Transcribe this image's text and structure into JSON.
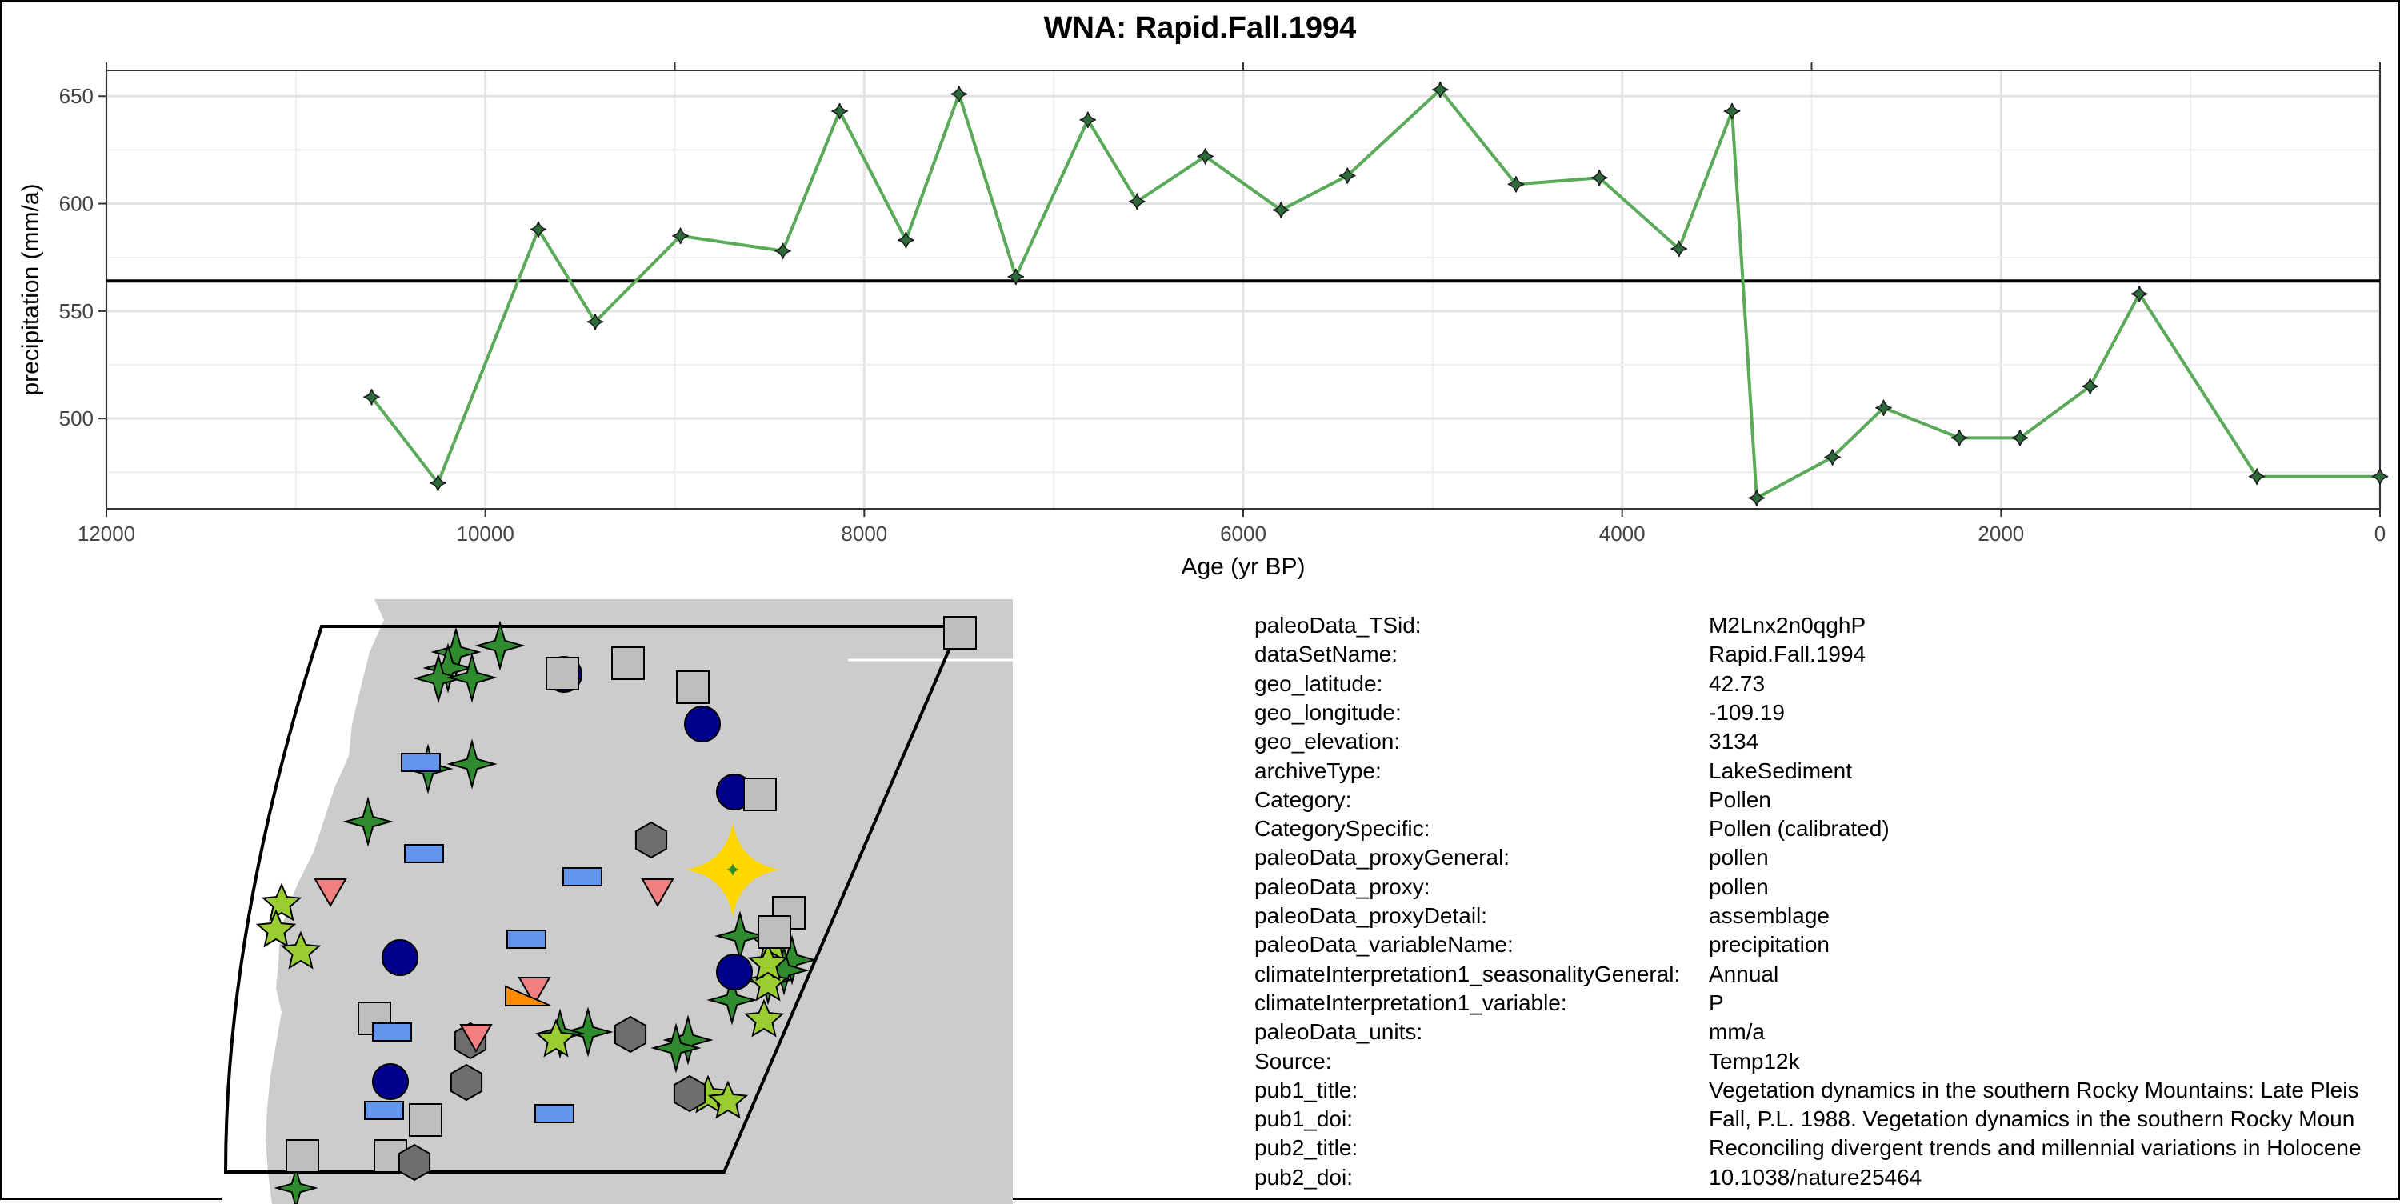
{
  "title": "WNA: Rapid.Fall.1994",
  "chart_data": {
    "type": "line",
    "title": "WNA: Rapid.Fall.1994",
    "xlabel": "Age (yr BP)",
    "ylabel": "precipitation (mm/a)",
    "xlim": [
      12000,
      0
    ],
    "ylim": [
      458,
      662
    ],
    "x_ticks": [
      12000,
      10000,
      8000,
      6000,
      4000,
      2000,
      0
    ],
    "y_ticks": [
      500,
      550,
      600,
      650
    ],
    "reference_line": 564,
    "grid": true,
    "series": [
      {
        "color": "#5aaa5a",
        "marker_color": "#2e6b3a",
        "x": [
          10600,
          10250,
          9720,
          9420,
          8970,
          8430,
          8130,
          7780,
          7500,
          7200,
          6820,
          6560,
          6200,
          5800,
          5450,
          4960,
          4560,
          4120,
          3700,
          3420,
          3290,
          2890,
          2620,
          2220,
          1900,
          1530,
          1270,
          650,
          0
        ],
        "y": [
          510,
          470,
          588,
          545,
          585,
          578,
          643,
          583,
          651,
          566,
          639,
          601,
          622,
          597,
          613,
          653,
          609,
          612,
          579,
          643,
          463,
          482,
          505,
          491,
          491,
          515,
          558,
          473,
          473
        ]
      }
    ]
  },
  "map": {
    "land_color": "#cccccc",
    "ocean_color": "#ffffff",
    "highlight_color": "#ffd700",
    "site_colors": {
      "dark_green": "#2e8b2e",
      "light_green": "#9acd32",
      "navy": "#00008b",
      "gray_square": "#bebebe",
      "dark_hex": "#6e6e6e",
      "blue_rect": "#6495ed",
      "pink_triangle": "#f08080",
      "orange": "#ff8c00"
    }
  },
  "metadata": [
    {
      "key": "paleoData_TSid:",
      "value": "M2Lnx2n0qghP"
    },
    {
      "key": "dataSetName:",
      "value": "Rapid.Fall.1994"
    },
    {
      "key": "geo_latitude:",
      "value": "42.73"
    },
    {
      "key": "geo_longitude:",
      "value": "-109.19"
    },
    {
      "key": "geo_elevation:",
      "value": "3134"
    },
    {
      "key": "archiveType:",
      "value": "LakeSediment"
    },
    {
      "key": "Category:",
      "value": "Pollen"
    },
    {
      "key": "CategorySpecific:",
      "value": "Pollen (calibrated)"
    },
    {
      "key": "paleoData_proxyGeneral:",
      "value": "pollen"
    },
    {
      "key": "paleoData_proxy:",
      "value": "pollen"
    },
    {
      "key": "paleoData_proxyDetail:",
      "value": "assemblage"
    },
    {
      "key": "paleoData_variableName:",
      "value": "precipitation"
    },
    {
      "key": "climateInterpretation1_seasonalityGeneral:",
      "value": "Annual"
    },
    {
      "key": "climateInterpretation1_variable:",
      "value": "P"
    },
    {
      "key": "paleoData_units:",
      "value": "mm/a"
    },
    {
      "key": "Source:",
      "value": "Temp12k"
    },
    {
      "key": "pub1_title:",
      "value": "Vegetation dynamics in the southern Rocky Mountains: Late Pleis"
    },
    {
      "key": "pub1_doi:",
      "value": "Fall, P.L. 1988. Vegetation dynamics in the southern Rocky Moun"
    },
    {
      "key": "pub2_title:",
      "value": "Reconciling divergent trends and millennial variations in Holocene"
    },
    {
      "key": "pub2_doi:",
      "value": "10.1038/nature25464"
    }
  ]
}
